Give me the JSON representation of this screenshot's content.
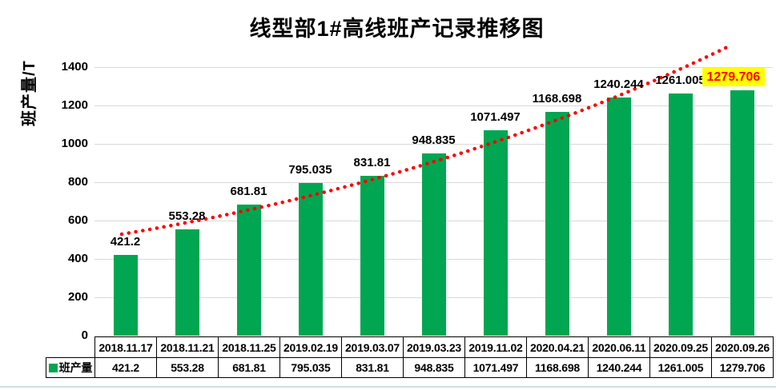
{
  "chart_data": {
    "type": "bar",
    "title": "线型部1#高线班产记录推移图",
    "ylabel": "班产量/T",
    "xlabel": "",
    "series_name": "班产量",
    "categories": [
      "2018.11.17",
      "2018.11.21",
      "2018.11.25",
      "2019.02.19",
      "2019.03.07",
      "2019.03.23",
      "2019.11.02",
      "2020.04.21",
      "2020.06.11",
      "2020.09.25",
      "2020.09.26"
    ],
    "values": [
      421.2,
      553.28,
      681.81,
      795.035,
      831.81,
      948.835,
      1071.497,
      1168.698,
      1240.244,
      1261.005,
      1279.706
    ],
    "value_labels": [
      "421.2",
      "553.28",
      "681.81",
      "795.035",
      "831.81",
      "948.835",
      "1071.497",
      "1168.698",
      "1240.244",
      "1261.005",
      "1279.706"
    ],
    "ylim": [
      0,
      1400
    ],
    "ytick_step": 200,
    "grid": true,
    "legend_position": "data-table-left",
    "bar_color": "#00A651",
    "label_color": "#000000",
    "trendline": {
      "type": "exponential",
      "color": "#FF0000",
      "style": "dotted"
    },
    "last_label_highlight": {
      "background": "#FFFF00",
      "text_color": "#FF0000"
    }
  }
}
